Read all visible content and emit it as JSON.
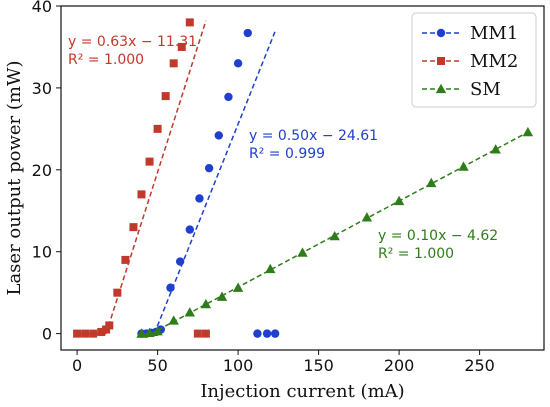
{
  "chart_data": {
    "type": "scatter",
    "xlabel": "Injection current (mA)",
    "ylabel": "Laser output power (mW)",
    "xlim": [
      -10,
      290
    ],
    "ylim": [
      -2,
      40
    ],
    "xticks": [
      0,
      50,
      100,
      150,
      200,
      250
    ],
    "yticks": [
      0,
      10,
      20,
      30,
      40
    ],
    "grid": false,
    "legend_position": "top-right",
    "series": [
      {
        "name": "MM1",
        "color": "#1f3fcf",
        "marker": "circle",
        "x": [
          40,
          43,
          46,
          49,
          52,
          58,
          64,
          70,
          76,
          82,
          88,
          94,
          100,
          106,
          112,
          118,
          123
        ],
        "y": [
          0.0,
          0.0,
          0.1,
          0.2,
          0.5,
          5.6,
          8.8,
          12.7,
          16.5,
          20.2,
          24.2,
          28.9,
          33.0,
          36.7,
          0,
          0,
          0
        ],
        "fit_line_x": [
          48,
          123
        ],
        "fit_line_y": [
          0,
          36.9
        ],
        "fit_label": {
          "eq": "y = 0.50x − 24.61",
          "r2": "R² = 0.999"
        }
      },
      {
        "name": "MM2",
        "color": "#c0392b",
        "marker": "square",
        "x": [
          0,
          5,
          10,
          15,
          18,
          20,
          25,
          30,
          35,
          40,
          45,
          50,
          55,
          60,
          65,
          70,
          75,
          80
        ],
        "y": [
          0,
          0,
          0,
          0.2,
          0.5,
          1.0,
          5.0,
          9.0,
          13.0,
          17.0,
          21.0,
          25.0,
          29.0,
          33.0,
          35.0,
          38.0,
          0,
          0
        ],
        "fit_line_x": [
          18,
          80
        ],
        "fit_line_y": [
          0,
          38.2
        ],
        "fit_label": {
          "eq": "y = 0.63x − 11.31",
          "r2": "R² = 1.000"
        }
      },
      {
        "name": "SM",
        "color": "#2e7d1a",
        "marker": "triangle",
        "x": [
          40,
          45,
          50,
          60,
          70,
          80,
          90,
          100,
          120,
          140,
          160,
          180,
          200,
          220,
          240,
          260,
          280
        ],
        "y": [
          0,
          0.1,
          0.3,
          1.6,
          2.6,
          3.6,
          4.5,
          5.6,
          7.9,
          9.9,
          11.9,
          14.2,
          16.2,
          18.4,
          20.4,
          22.5,
          24.6
        ],
        "fit_line_x": [
          46,
          280
        ],
        "fit_line_y": [
          0,
          24.6
        ],
        "fit_label": {
          "eq": "y = 0.10x − 4.62",
          "r2": "R² = 1.000"
        }
      }
    ]
  }
}
